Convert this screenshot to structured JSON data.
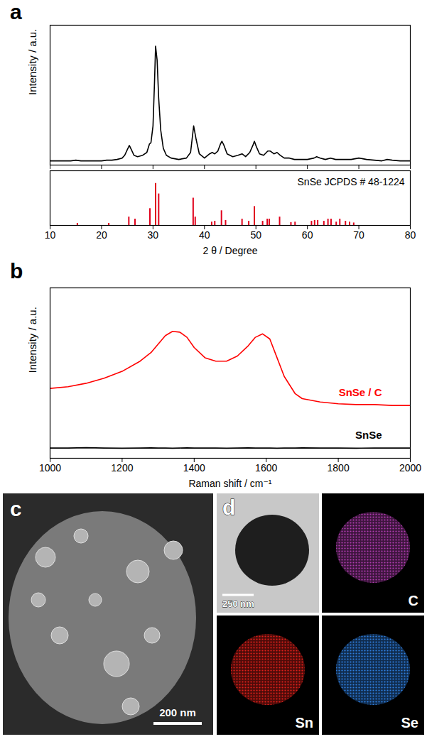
{
  "chart_data": [
    {
      "panel": "a",
      "type": "line",
      "ylabel": "Intensity / a.u.",
      "color": "#000000",
      "x": [
        10,
        12,
        14,
        15,
        16,
        18,
        20,
        21,
        22,
        23,
        24,
        24.5,
        25,
        25.4,
        25.8,
        26.3,
        27,
        28,
        28.8,
        29.3,
        29.6,
        30,
        30.3,
        30.5,
        30.8,
        31.1,
        31.5,
        32,
        32.6,
        33.5,
        35,
        36.5,
        37.3,
        37.9,
        38.4,
        39,
        40,
        41,
        41.5,
        42,
        42.6,
        43.1,
        43.4,
        43.8,
        44.4,
        45.5,
        46.5,
        47.3,
        48,
        48.8,
        49.4,
        49.7,
        50.1,
        50.7,
        51.5,
        52.3,
        52.8,
        53.5,
        54.1,
        54.7,
        55.5,
        56.5,
        57.5,
        58.5,
        60,
        61.3,
        61.8,
        62.5,
        63.5,
        64.5,
        65.5,
        67,
        68.5,
        70,
        71.5,
        73,
        74.5,
        75.5,
        76.5,
        78,
        80
      ],
      "values": [
        3,
        3,
        3,
        3.5,
        3,
        3,
        3,
        3.5,
        3.5,
        4,
        5,
        7,
        11,
        14,
        11,
        7,
        6,
        7,
        9,
        15,
        16,
        28,
        60,
        85,
        75,
        48,
        25,
        12,
        7,
        5,
        4,
        5,
        9,
        28,
        18,
        8,
        5,
        8,
        9,
        8,
        10,
        15,
        17,
        14,
        8,
        6,
        7,
        8,
        6,
        9,
        14,
        17,
        13,
        8,
        7,
        10,
        10,
        8,
        9,
        7,
        5,
        5,
        4,
        4,
        4,
        5,
        6,
        5,
        4,
        5,
        4,
        4,
        4,
        5,
        4,
        3.5,
        3,
        4,
        3.5,
        3,
        3
      ],
      "xlim": [
        10,
        80
      ],
      "xticks": [
        10,
        20,
        30,
        40,
        50,
        60,
        70,
        80
      ],
      "ylim": [
        0,
        100
      ],
      "tick_labels": false
    },
    {
      "type": "stick",
      "annotation": "SnSe JCPDS # 48-1224",
      "xlabel": "2 θ / Degree",
      "color": "#e0001b",
      "x": [
        15.3,
        21.4,
        25.3,
        26.5,
        29.4,
        30.5,
        31.1,
        37.8,
        38.2,
        41.4,
        42.0,
        43.3,
        44.1,
        47.3,
        48.6,
        49.7,
        51.3,
        52.2,
        52.6,
        54.6,
        56.8,
        57.6,
        60.8,
        61.4,
        62.0,
        63.2,
        64.0,
        64.6,
        65.6,
        66.3,
        67.4,
        68.2,
        69.0
      ],
      "values": [
        5,
        5,
        20,
        15,
        40,
        100,
        75,
        65,
        20,
        8,
        10,
        35,
        12,
        15,
        10,
        45,
        10,
        15,
        15,
        20,
        7,
        8,
        10,
        12,
        12,
        10,
        15,
        15,
        8,
        15,
        10,
        8,
        6
      ],
      "xlim": [
        10,
        80
      ],
      "xticks": [
        10,
        20,
        30,
        40,
        50,
        60,
        70,
        80
      ],
      "ylim": [
        0,
        130
      ],
      "tick_labels": "x"
    },
    {
      "panel": "b",
      "type": "line",
      "xlabel": "Raman shift / cm⁻¹",
      "ylabel": "Intensity / a.u.",
      "x": [
        1000,
        1050,
        1100,
        1150,
        1200,
        1250,
        1280,
        1300,
        1320,
        1340,
        1360,
        1380,
        1400,
        1430,
        1460,
        1490,
        1520,
        1550,
        1570,
        1590,
        1610,
        1630,
        1650,
        1680,
        1700,
        1750,
        1800,
        1850,
        1900,
        1950,
        2000
      ],
      "series": [
        {
          "name": "SnSe / C",
          "color": "#ff0000",
          "values": [
            41,
            42,
            44,
            47,
            51,
            57,
            62,
            67,
            72,
            74.5,
            74,
            71,
            65,
            59,
            57,
            57,
            60,
            66,
            71,
            73,
            70,
            59,
            48,
            38,
            35,
            33,
            32,
            31.5,
            31.5,
            31,
            31
          ]
        },
        {
          "name": "SnSe",
          "color": "#000000",
          "values": [
            6,
            6,
            6.2,
            6,
            5.9,
            6,
            6.1,
            6,
            6,
            5.9,
            6,
            6.1,
            6,
            6,
            6,
            5.9,
            6,
            6.1,
            6,
            6,
            6,
            5.9,
            6,
            6,
            6.1,
            6,
            6,
            5.9,
            6,
            6,
            6
          ]
        }
      ],
      "xlim": [
        1000,
        2000
      ],
      "xticks": [
        1000,
        1200,
        1400,
        1600,
        1800,
        2000
      ],
      "ylim": [
        0,
        100
      ],
      "tick_labels": "x"
    }
  ],
  "micrographs": [
    {
      "panel": "c",
      "scale_bar": "200 nm"
    },
    {
      "panel": "d",
      "scale_bar": "250 nm",
      "maps": [
        {
          "label": "C",
          "color": "#b03cb0"
        },
        {
          "label": "Sn",
          "color": "#e0201a"
        },
        {
          "label": "Se",
          "color": "#2f7fe0"
        }
      ]
    }
  ]
}
